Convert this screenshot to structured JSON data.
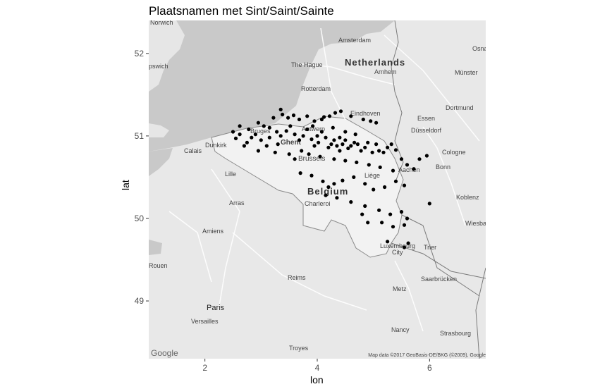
{
  "title": "Plaatsnamen met Sint/Saint/Sainte",
  "xlabel": "lon",
  "ylabel": "lat",
  "x_ticks": [
    "2",
    "4",
    "6"
  ],
  "y_ticks": [
    "52",
    "51",
    "50",
    "49"
  ],
  "attribution": "Map data ©2017 GeoBasis-DE/BKG (©2009), Google",
  "google_logo": "Google",
  "map_labels": {
    "country_nl": "Netherlands",
    "country_be": "Belgium",
    "cities": [
      "Amsterdam",
      "The Hague",
      "Rotterdam",
      "Arnhem",
      "Eindhoven",
      "Essen",
      "Düsseldorf",
      "Dortmund",
      "Münster",
      "Cologne",
      "Bonn",
      "Aachen",
      "Koblenz",
      "Liège",
      "Ghent",
      "Brussels",
      "Bruges",
      "Antwerp",
      "Dunkirk",
      "Calais",
      "Lille",
      "Arras",
      "Amiens",
      "Rouen",
      "Paris",
      "Versailles",
      "Reims",
      "Luxembourg City",
      "Trier",
      "Metz",
      "Nancy",
      "Saarbrücken",
      "Strasbourg",
      "Troyes",
      "Wiesbaden",
      "Charleroi",
      "Norwich",
      "Ipswich",
      "Osna"
    ]
  },
  "colors": {
    "land": "#e6e6e6",
    "sea": "#c9c9c9",
    "border": "#8a8a8a",
    "points": "#000000"
  },
  "chart_data": {
    "type": "scatter",
    "title": "Plaatsnamen met Sint/Saint/Sainte",
    "xlabel": "lon",
    "ylabel": "lat",
    "xlim": [
      1.0,
      7.0
    ],
    "ylim": [
      48.3,
      52.4
    ],
    "points": [
      [
        2.62,
        51.12
      ],
      [
        2.78,
        51.08
      ],
      [
        2.95,
        51.16
      ],
      [
        3.05,
        51.12
      ],
      [
        3.22,
        51.22
      ],
      [
        3.38,
        51.26
      ],
      [
        3.48,
        51.22
      ],
      [
        3.58,
        51.25
      ],
      [
        3.68,
        51.2
      ],
      [
        3.82,
        51.24
      ],
      [
        3.95,
        51.18
      ],
      [
        4.08,
        51.2
      ],
      [
        4.12,
        51.23
      ],
      [
        4.22,
        51.24
      ],
      [
        4.32,
        51.28
      ],
      [
        4.42,
        51.3
      ],
      [
        4.6,
        51.24
      ],
      [
        4.82,
        51.2
      ],
      [
        4.95,
        51.18
      ],
      [
        5.05,
        51.16
      ],
      [
        2.55,
        50.97
      ],
      [
        2.62,
        51.02
      ],
      [
        2.75,
        50.92
      ],
      [
        2.83,
        50.98
      ],
      [
        2.9,
        51.02
      ],
      [
        3.0,
        50.95
      ],
      [
        3.1,
        50.88
      ],
      [
        3.15,
        50.98
      ],
      [
        3.28,
        51.05
      ],
      [
        3.35,
        51.0
      ],
      [
        3.45,
        51.06
      ],
      [
        3.52,
        51.12
      ],
      [
        3.6,
        51.02
      ],
      [
        3.68,
        50.95
      ],
      [
        3.75,
        51.0
      ],
      [
        3.82,
        51.08
      ],
      [
        3.9,
        50.96
      ],
      [
        3.95,
        50.88
      ],
      [
        4.02,
        50.92
      ],
      [
        4.08,
        51.05
      ],
      [
        4.15,
        50.98
      ],
      [
        4.2,
        50.86
      ],
      [
        4.25,
        50.9
      ],
      [
        4.3,
        50.95
      ],
      [
        4.35,
        50.88
      ],
      [
        4.4,
        50.82
      ],
      [
        4.45,
        50.9
      ],
      [
        4.5,
        50.95
      ],
      [
        4.55,
        50.85
      ],
      [
        4.6,
        50.88
      ],
      [
        4.66,
        50.92
      ],
      [
        4.72,
        50.9
      ],
      [
        4.78,
        50.82
      ],
      [
        4.85,
        50.86
      ],
      [
        4.9,
        50.92
      ],
      [
        4.98,
        50.8
      ],
      [
        5.05,
        50.9
      ],
      [
        5.1,
        50.82
      ],
      [
        5.18,
        50.8
      ],
      [
        5.25,
        50.86
      ],
      [
        5.32,
        50.9
      ],
      [
        5.4,
        50.83
      ],
      [
        5.5,
        50.72
      ],
      [
        5.6,
        50.65
      ],
      [
        5.72,
        50.6
      ],
      [
        5.82,
        50.72
      ],
      [
        5.95,
        50.76
      ],
      [
        2.7,
        50.88
      ],
      [
        2.95,
        50.82
      ],
      [
        3.25,
        50.8
      ],
      [
        3.5,
        50.78
      ],
      [
        3.72,
        50.82
      ],
      [
        3.85,
        50.78
      ],
      [
        4.05,
        50.75
      ],
      [
        4.3,
        50.72
      ],
      [
        4.5,
        50.7
      ],
      [
        4.7,
        50.68
      ],
      [
        4.92,
        50.65
      ],
      [
        5.12,
        50.62
      ],
      [
        5.35,
        50.58
      ],
      [
        3.7,
        50.55
      ],
      [
        3.9,
        50.52
      ],
      [
        4.1,
        50.45
      ],
      [
        4.2,
        50.38
      ],
      [
        4.3,
        50.42
      ],
      [
        4.45,
        50.46
      ],
      [
        4.65,
        50.5
      ],
      [
        4.85,
        50.42
      ],
      [
        5.0,
        50.35
      ],
      [
        5.2,
        50.38
      ],
      [
        5.4,
        50.45
      ],
      [
        5.55,
        50.4
      ],
      [
        4.15,
        50.28
      ],
      [
        4.35,
        50.25
      ],
      [
        4.6,
        50.2
      ],
      [
        4.85,
        50.15
      ],
      [
        5.1,
        50.1
      ],
      [
        5.3,
        50.05
      ],
      [
        5.5,
        50.08
      ],
      [
        5.6,
        50.0
      ],
      [
        4.8,
        50.05
      ],
      [
        4.9,
        49.95
      ],
      [
        5.15,
        49.95
      ],
      [
        5.35,
        49.9
      ],
      [
        5.55,
        49.92
      ],
      [
        6.0,
        50.18
      ],
      [
        5.25,
        49.72
      ],
      [
        5.55,
        49.65
      ],
      [
        5.62,
        49.7
      ],
      [
        3.35,
        51.32
      ],
      [
        2.5,
        51.05
      ],
      [
        3.92,
        51.12
      ],
      [
        4.68,
        51.02
      ],
      [
        4.5,
        51.05
      ],
      [
        4.28,
        51.1
      ],
      [
        3.15,
        51.1
      ],
      [
        3.6,
        50.72
      ],
      [
        3.3,
        50.9
      ],
      [
        4.0,
        51.0
      ],
      [
        4.4,
        50.98
      ]
    ]
  }
}
